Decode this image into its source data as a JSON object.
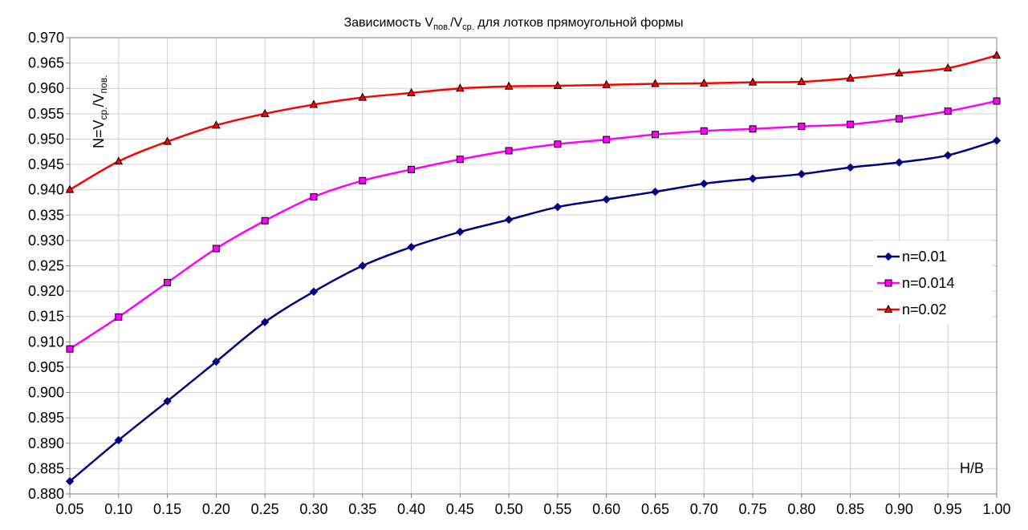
{
  "chart_data": {
    "type": "line",
    "title": {
      "prefix": "Зависимость V",
      "sub1": "пов.",
      "mid": "/V",
      "sub2": "ср.",
      "suffix": " для  лотков прямоугольной формы"
    },
    "ylabel": {
      "prefix": "N=V",
      "sub1": "ср.",
      "mid": "/V",
      "sub2": "пов."
    },
    "xlabel": "H/B",
    "x_tick_labels": [
      "0.05",
      "0.10",
      "0.15",
      "0.20",
      "0.25",
      "0.30",
      "0.35",
      "0.40",
      "0.45",
      "0.50",
      "0.55",
      "0.60",
      "0.65",
      "0.70",
      "0.75",
      "0.80",
      "0.85",
      "0.90",
      "0.95",
      "1.00"
    ],
    "y_tick_labels": [
      "0.970",
      "0.965",
      "0.960",
      "0.955",
      "0.950",
      "0.945",
      "0.940",
      "0.935",
      "0.930",
      "0.925",
      "0.920",
      "0.915",
      "0.910",
      "0.905",
      "0.900",
      "0.895",
      "0.890",
      "0.885",
      "0.880"
    ],
    "x": [
      0.05,
      0.1,
      0.15,
      0.2,
      0.25,
      0.3,
      0.35,
      0.4,
      0.45,
      0.5,
      0.55,
      0.6,
      0.65,
      0.7,
      0.75,
      0.8,
      0.85,
      0.9,
      0.95,
      1.0
    ],
    "xlim": [
      0.05,
      1.0
    ],
    "ylim": [
      0.88,
      0.97
    ],
    "grid": true,
    "legend_position": "right",
    "series": [
      {
        "name": "n=0.01",
        "color": "#000080",
        "marker": "diamond",
        "values": [
          0.8825,
          0.8906,
          0.8983,
          0.9061,
          0.9139,
          0.9199,
          0.925,
          0.9287,
          0.9317,
          0.9341,
          0.9366,
          0.9381,
          0.9396,
          0.9412,
          0.9422,
          0.9431,
          0.9444,
          0.9454,
          0.9468,
          0.9497
        ]
      },
      {
        "name": "n=0.014",
        "color": "#ff00ff",
        "marker": "square",
        "values": [
          0.9086,
          0.9149,
          0.9217,
          0.9284,
          0.9339,
          0.9386,
          0.9418,
          0.944,
          0.946,
          0.9477,
          0.949,
          0.9499,
          0.9509,
          0.9516,
          0.952,
          0.9525,
          0.9529,
          0.954,
          0.9555,
          0.9575
        ]
      },
      {
        "name": "n=0.02",
        "color": "#ff0000",
        "marker": "triangle",
        "values": [
          0.94,
          0.9456,
          0.9495,
          0.9527,
          0.955,
          0.9568,
          0.9582,
          0.9591,
          0.96,
          0.9604,
          0.9605,
          0.9607,
          0.9609,
          0.961,
          0.9612,
          0.9613,
          0.962,
          0.963,
          0.964,
          0.9665
        ]
      }
    ]
  }
}
